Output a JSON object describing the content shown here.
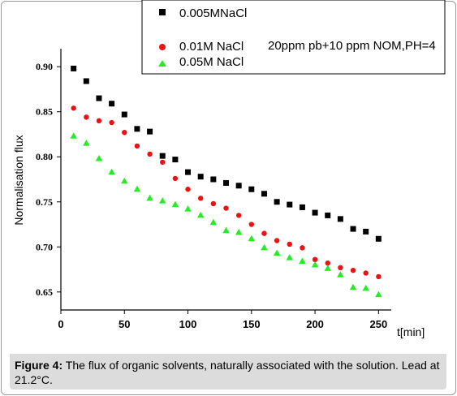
{
  "chart_data": {
    "type": "scatter",
    "xlabel": "t[min]",
    "ylabel": "Normalisation flux",
    "xlim": [
      0,
      260
    ],
    "ylim": [
      0.63,
      0.92
    ],
    "x_ticks": [
      "0",
      "50",
      "100",
      "150",
      "200",
      "250"
    ],
    "y_ticks": [
      "0.90",
      "0.85",
      "0.80",
      "0.75",
      "0.70",
      "0.65"
    ],
    "legend_position": "top-right",
    "annotation": "20ppm pb+10 ppm NOM,PH=4",
    "series": [
      {
        "name": "0.005MNaCl",
        "marker": "square",
        "color": "#000000",
        "x": [
          10,
          20,
          30,
          40,
          50,
          60,
          70,
          80,
          90,
          100,
          110,
          120,
          130,
          140,
          150,
          160,
          170,
          180,
          190,
          200,
          210,
          220,
          230,
          240,
          250
        ],
        "y": [
          0.898,
          0.884,
          0.865,
          0.859,
          0.847,
          0.831,
          0.828,
          0.801,
          0.797,
          0.783,
          0.778,
          0.775,
          0.771,
          0.768,
          0.764,
          0.759,
          0.75,
          0.747,
          0.744,
          0.738,
          0.735,
          0.731,
          0.72,
          0.717,
          0.709
        ]
      },
      {
        "name": "0.01M NaCl",
        "marker": "circle",
        "color": "#ee1111",
        "x": [
          10,
          20,
          30,
          40,
          50,
          60,
          70,
          80,
          90,
          100,
          110,
          120,
          130,
          140,
          150,
          160,
          170,
          180,
          190,
          200,
          210,
          220,
          230,
          240,
          250
        ],
        "y": [
          0.854,
          0.844,
          0.84,
          0.838,
          0.827,
          0.812,
          0.803,
          0.794,
          0.776,
          0.764,
          0.754,
          0.748,
          0.743,
          0.735,
          0.725,
          0.715,
          0.707,
          0.703,
          0.699,
          0.686,
          0.682,
          0.677,
          0.674,
          0.671,
          0.667
        ]
      },
      {
        "name": "0.05M NaCl",
        "marker": "triangle",
        "color": "#22ee22",
        "x": [
          10,
          20,
          30,
          40,
          50,
          60,
          70,
          80,
          90,
          100,
          110,
          120,
          130,
          140,
          150,
          160,
          170,
          180,
          190,
          200,
          210,
          220,
          230,
          240,
          250
        ],
        "y": [
          0.823,
          0.815,
          0.798,
          0.783,
          0.773,
          0.764,
          0.754,
          0.751,
          0.747,
          0.742,
          0.735,
          0.727,
          0.718,
          0.716,
          0.709,
          0.699,
          0.693,
          0.688,
          0.684,
          0.68,
          0.676,
          0.669,
          0.655,
          0.654,
          0.647
        ]
      }
    ]
  },
  "caption": {
    "label": "Figure 4:",
    "text": "The flux of organic solvents, naturally associated with the solution. Lead at 21.2°C."
  }
}
